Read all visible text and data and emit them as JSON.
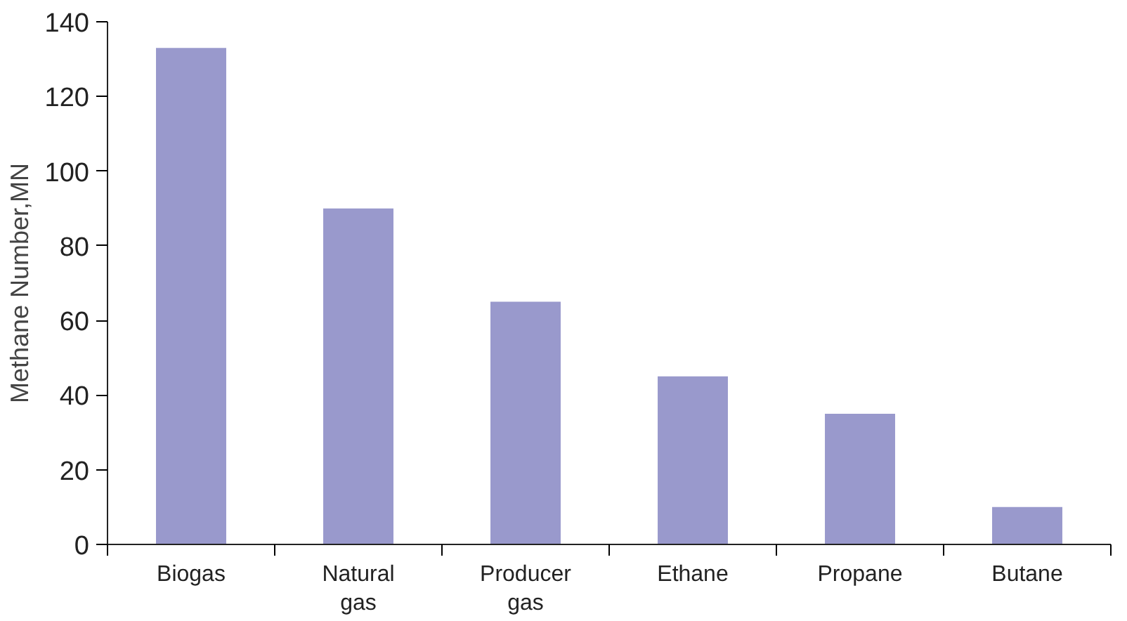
{
  "chart_data": {
    "type": "bar",
    "ylabel": "Methane Number,MN",
    "categories": [
      "Biogas",
      "Natural gas",
      "Producer gas",
      "Ethane",
      "Propane",
      "Butane"
    ],
    "values": [
      133,
      90,
      65,
      45,
      35,
      10
    ],
    "color": "#9999cc",
    "ylim": [
      0,
      140
    ],
    "yticks": [
      0,
      20,
      40,
      60,
      80,
      100,
      120,
      140
    ],
    "grid": false
  }
}
